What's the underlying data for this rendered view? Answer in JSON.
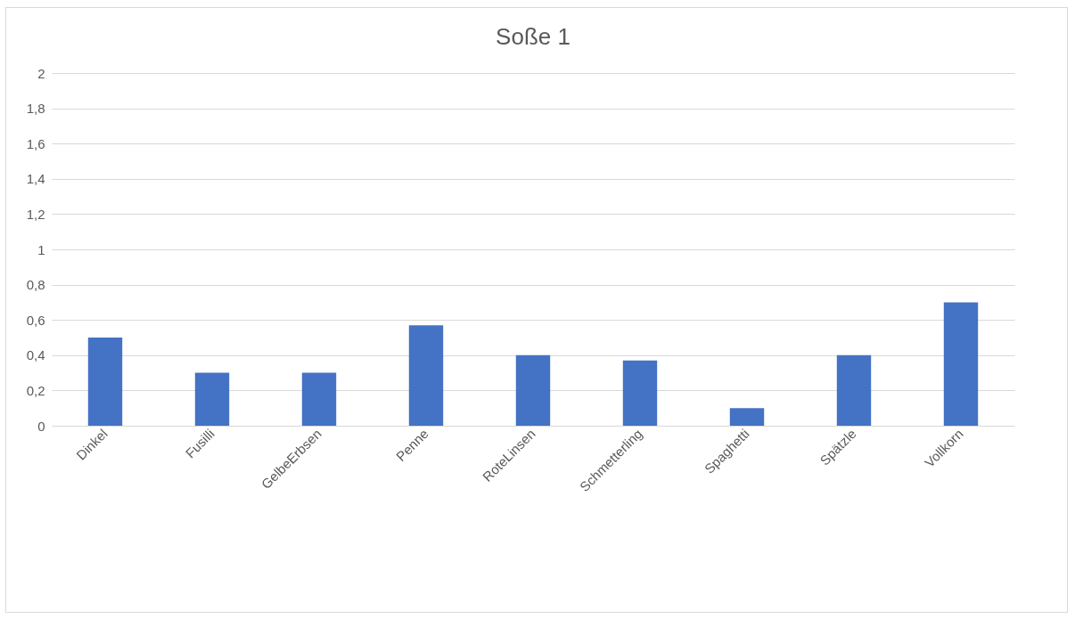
{
  "chart_data": {
    "type": "bar",
    "title": "Soße 1",
    "categories": [
      "Dinkel",
      "Fusilli",
      "GelbeErbsen",
      "Penne",
      "RoteLinsen",
      "Schmetterling",
      "Spaghetti",
      "Spätzle",
      "Vollkorn"
    ],
    "values": [
      0.5,
      0.3,
      0.3,
      0.57,
      0.4,
      0.37,
      0.1,
      0.4,
      0.7
    ],
    "color": "#4472c4",
    "ylim": [
      0,
      2
    ],
    "yticks": [
      0,
      {
        "value": 0.2,
        "label": "0,2"
      },
      {
        "value": 0.4,
        "label": "0,4"
      },
      {
        "value": 0.6,
        "label": "0,6"
      },
      {
        "value": 0.8,
        "label": "0,8"
      },
      1,
      {
        "value": 1.2,
        "label": "1,2"
      },
      {
        "value": 1.4,
        "label": "1,4"
      },
      {
        "value": 1.6,
        "label": "1,6"
      },
      {
        "value": 1.8,
        "label": "1,8"
      },
      2
    ],
    "grid": true
  }
}
